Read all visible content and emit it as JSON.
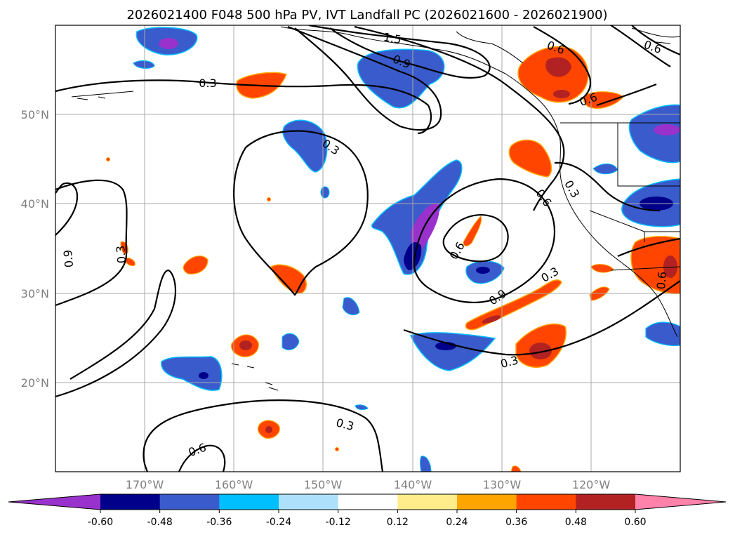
{
  "title": "2026021400 F048 500 hPa PV, IVT Landfall PC (2026021600 - 2026021900)",
  "map": {
    "lon_range": [
      -180,
      -110
    ],
    "lat_range": [
      10,
      60
    ],
    "lon_ticks": [
      {
        "value": -170,
        "label": "170°W"
      },
      {
        "value": -160,
        "label": "160°W"
      },
      {
        "value": -150,
        "label": "150°W"
      },
      {
        "value": -140,
        "label": "140°W"
      },
      {
        "value": -130,
        "label": "130°W"
      },
      {
        "value": -120,
        "label": "120°W"
      }
    ],
    "lat_ticks": [
      {
        "value": 20,
        "label": "20°N"
      },
      {
        "value": 30,
        "label": "30°N"
      },
      {
        "value": 40,
        "label": "40°N"
      },
      {
        "value": 50,
        "label": "50°N"
      }
    ],
    "contour_labels": [
      "1.5",
      "0.9",
      "0.3",
      "0.6",
      "0.3",
      "0.6",
      "0.6",
      "0.3",
      "0.9",
      "0.3",
      "0.3",
      "0.6",
      "0.6",
      "0.6",
      "0.9",
      "0.3",
      "0.3",
      "0.6"
    ]
  },
  "colorbar": {
    "colors": [
      "#9932CC",
      "#00008B",
      "#3A5BCC",
      "#00BFFF",
      "#ADE0FA",
      "#FFFFFF",
      "#FFEC8B",
      "#FFA500",
      "#FF4500",
      "#B22222",
      "#FF82AB"
    ],
    "labels": [
      "-0.60",
      "-0.48",
      "-0.36",
      "-0.24",
      "-0.12",
      "0.12",
      "0.24",
      "0.36",
      "0.48",
      "0.60"
    ]
  }
}
